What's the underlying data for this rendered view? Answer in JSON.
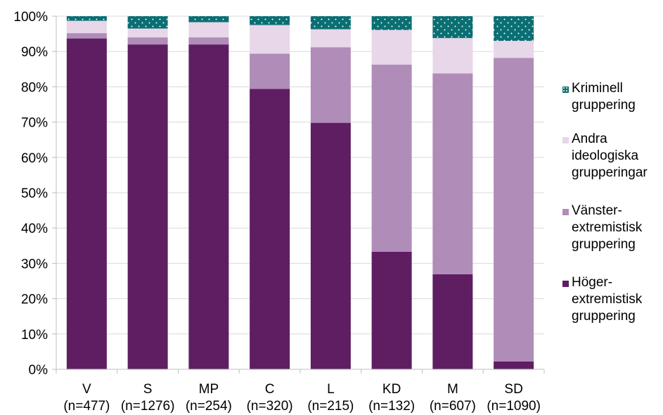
{
  "chart_data": {
    "type": "bar",
    "stacked": true,
    "categories": [
      "V",
      "S",
      "MP",
      "C",
      "L",
      "KD",
      "M",
      "SD"
    ],
    "category_counts": [
      "(n=477)",
      "(n=1276)",
      "(n=254)",
      "(n=320)",
      "(n=215)",
      "(n=132)",
      "(n=607)",
      "(n=1090)"
    ],
    "ylim": [
      0,
      100
    ],
    "y_ticks": [
      0,
      10,
      20,
      30,
      40,
      50,
      60,
      70,
      80,
      90,
      100
    ],
    "y_tick_labels": [
      "0%",
      "10%",
      "20%",
      "30%",
      "40%",
      "50%",
      "60%",
      "70%",
      "80%",
      "90%",
      "100%"
    ],
    "grid": true,
    "legend_placement": "right",
    "series": [
      {
        "name": "Höger-extremistisk gruppering",
        "label_lines": [
          "Höger-",
          "extremistisk",
          "gruppering"
        ],
        "color": "#5f1e62",
        "pattern": "solid",
        "values": [
          93.7,
          92.0,
          92.0,
          79.4,
          69.8,
          33.3,
          26.9,
          2.2
        ]
      },
      {
        "name": "Vänster-extremistisk gruppering",
        "label_lines": [
          "Vänster-",
          "extremistisk",
          "gruppering"
        ],
        "color": "#b08cb8",
        "pattern": "solid",
        "values": [
          1.5,
          2.0,
          2.0,
          10.0,
          21.4,
          53.0,
          56.9,
          86.0
        ]
      },
      {
        "name": "Andra ideologiska grupperingar",
        "label_lines": [
          "Andra",
          "ideologiska",
          "grupperingar"
        ],
        "color": "#e8d6e9",
        "pattern": "solid",
        "values": [
          3.5,
          2.5,
          4.3,
          8.1,
          5.1,
          9.8,
          10.0,
          4.8
        ]
      },
      {
        "name": "Kriminell gruppering",
        "label_lines": [
          "Kriminell",
          "gruppering"
        ],
        "color": "#0a6f73",
        "pattern": "dotted",
        "values": [
          1.3,
          3.5,
          1.7,
          2.5,
          3.7,
          3.9,
          6.2,
          7.0
        ]
      }
    ]
  }
}
